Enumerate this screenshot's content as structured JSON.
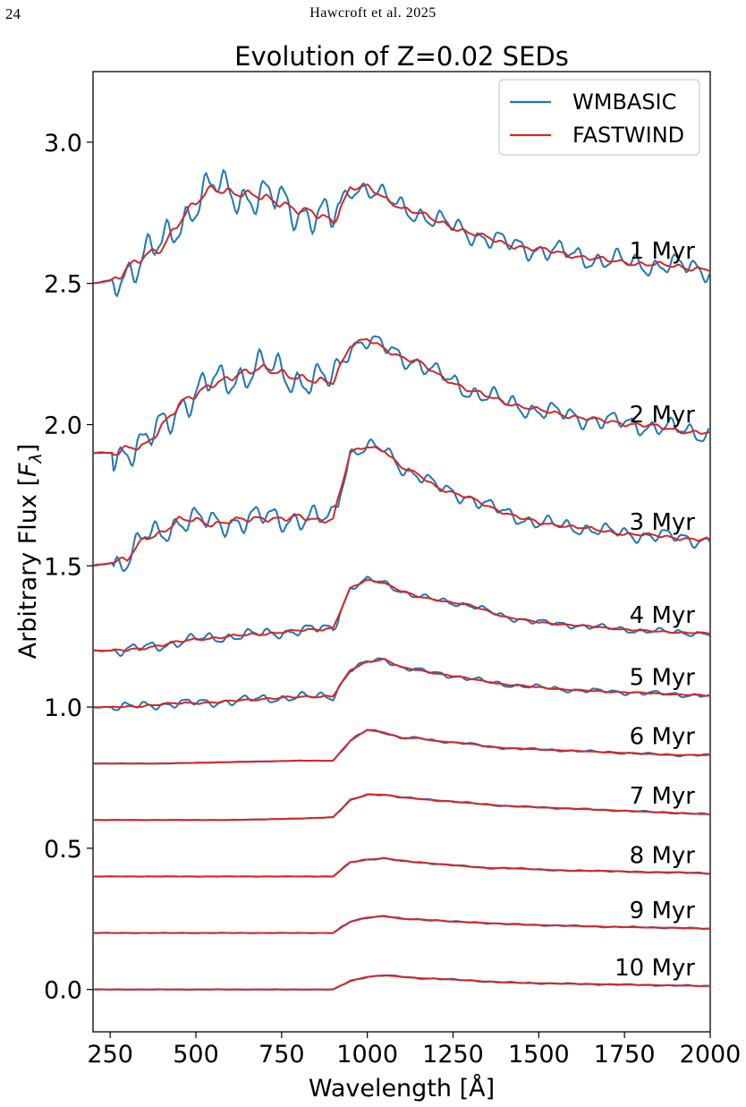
{
  "page": {
    "number": "24",
    "running_head": "Hawcroft et al. 2025"
  },
  "colors": {
    "wmbasic": "#1f77b4",
    "fastwind": "#d62728"
  },
  "chart_data": {
    "type": "line",
    "title": "Evolution of Z=0.02 SEDs",
    "xlabel": "Wavelength [Å]",
    "ylabel": "Arbitrary Flux [Fλ]",
    "xlim": [
      200,
      2000
    ],
    "ylim": [
      -0.15,
      3.25
    ],
    "xticks": [
      250,
      500,
      750,
      1000,
      1250,
      1500,
      1750,
      2000
    ],
    "yticks": [
      0.0,
      0.5,
      1.0,
      1.5,
      2.0,
      2.5,
      3.0
    ],
    "grid": false,
    "legend_position": "top-right",
    "legend": [
      "WMBASIC",
      "FASTWIND"
    ],
    "ages": [
      {
        "label": "1 Myr",
        "base": 2.5,
        "points": [
          [
            200,
            2.5
          ],
          [
            250,
            2.51
          ],
          [
            300,
            2.55
          ],
          [
            350,
            2.59
          ],
          [
            400,
            2.63
          ],
          [
            450,
            2.72
          ],
          [
            500,
            2.78
          ],
          [
            550,
            2.84
          ],
          [
            600,
            2.83
          ],
          [
            650,
            2.81
          ],
          [
            700,
            2.8
          ],
          [
            750,
            2.79
          ],
          [
            800,
            2.76
          ],
          [
            850,
            2.74
          ],
          [
            900,
            2.72
          ],
          [
            950,
            2.84
          ],
          [
            1000,
            2.84
          ],
          [
            1050,
            2.8
          ],
          [
            1100,
            2.77
          ],
          [
            1150,
            2.75
          ],
          [
            1200,
            2.72
          ],
          [
            1250,
            2.7
          ],
          [
            1300,
            2.68
          ],
          [
            1350,
            2.66
          ],
          [
            1400,
            2.64
          ],
          [
            1500,
            2.62
          ],
          [
            1600,
            2.6
          ],
          [
            1700,
            2.58
          ],
          [
            1800,
            2.57
          ],
          [
            1900,
            2.56
          ],
          [
            2000,
            2.55
          ]
        ]
      },
      {
        "label": "2 Myr",
        "base": 1.9,
        "points": [
          [
            200,
            1.9
          ],
          [
            250,
            1.9
          ],
          [
            300,
            1.91
          ],
          [
            350,
            1.92
          ],
          [
            400,
            2.0
          ],
          [
            450,
            2.07
          ],
          [
            500,
            2.1
          ],
          [
            550,
            2.15
          ],
          [
            600,
            2.17
          ],
          [
            650,
            2.18
          ],
          [
            700,
            2.2
          ],
          [
            750,
            2.19
          ],
          [
            800,
            2.16
          ],
          [
            850,
            2.15
          ],
          [
            900,
            2.16
          ],
          [
            950,
            2.28
          ],
          [
            1000,
            2.3
          ],
          [
            1050,
            2.27
          ],
          [
            1100,
            2.24
          ],
          [
            1150,
            2.22
          ],
          [
            1200,
            2.18
          ],
          [
            1250,
            2.15
          ],
          [
            1300,
            2.12
          ],
          [
            1350,
            2.1
          ],
          [
            1400,
            2.08
          ],
          [
            1500,
            2.05
          ],
          [
            1600,
            2.03
          ],
          [
            1700,
            2.01
          ],
          [
            1800,
            2.0
          ],
          [
            1900,
            1.98
          ],
          [
            2000,
            1.97
          ]
        ]
      },
      {
        "label": "3 Myr",
        "base": 1.5,
        "points": [
          [
            200,
            1.5
          ],
          [
            250,
            1.51
          ],
          [
            300,
            1.52
          ],
          [
            350,
            1.6
          ],
          [
            400,
            1.62
          ],
          [
            450,
            1.66
          ],
          [
            500,
            1.66
          ],
          [
            550,
            1.65
          ],
          [
            600,
            1.66
          ],
          [
            650,
            1.66
          ],
          [
            700,
            1.67
          ],
          [
            750,
            1.67
          ],
          [
            800,
            1.67
          ],
          [
            850,
            1.66
          ],
          [
            900,
            1.67
          ],
          [
            950,
            1.9
          ],
          [
            1000,
            1.92
          ],
          [
            1050,
            1.91
          ],
          [
            1100,
            1.85
          ],
          [
            1150,
            1.82
          ],
          [
            1200,
            1.78
          ],
          [
            1250,
            1.76
          ],
          [
            1300,
            1.74
          ],
          [
            1350,
            1.71
          ],
          [
            1400,
            1.69
          ],
          [
            1500,
            1.65
          ],
          [
            1600,
            1.64
          ],
          [
            1700,
            1.62
          ],
          [
            1800,
            1.61
          ],
          [
            1900,
            1.6
          ],
          [
            2000,
            1.59
          ]
        ]
      },
      {
        "label": "4 Myr",
        "base": 1.2,
        "points": [
          [
            200,
            1.2
          ],
          [
            300,
            1.2
          ],
          [
            400,
            1.22
          ],
          [
            500,
            1.24
          ],
          [
            600,
            1.25
          ],
          [
            700,
            1.26
          ],
          [
            800,
            1.27
          ],
          [
            900,
            1.28
          ],
          [
            950,
            1.42
          ],
          [
            1000,
            1.45
          ],
          [
            1050,
            1.44
          ],
          [
            1100,
            1.41
          ],
          [
            1150,
            1.39
          ],
          [
            1200,
            1.38
          ],
          [
            1250,
            1.37
          ],
          [
            1300,
            1.36
          ],
          [
            1350,
            1.34
          ],
          [
            1400,
            1.32
          ],
          [
            1500,
            1.3
          ],
          [
            1600,
            1.29
          ],
          [
            1700,
            1.28
          ],
          [
            1800,
            1.27
          ],
          [
            1900,
            1.265
          ],
          [
            2000,
            1.26
          ]
        ]
      },
      {
        "label": "5 Myr",
        "base": 1.0,
        "points": [
          [
            200,
            1.0
          ],
          [
            300,
            1.0
          ],
          [
            400,
            1.01
          ],
          [
            500,
            1.015
          ],
          [
            600,
            1.02
          ],
          [
            700,
            1.03
          ],
          [
            800,
            1.035
          ],
          [
            900,
            1.04
          ],
          [
            950,
            1.13
          ],
          [
            1000,
            1.16
          ],
          [
            1050,
            1.17
          ],
          [
            1100,
            1.14
          ],
          [
            1150,
            1.13
          ],
          [
            1200,
            1.12
          ],
          [
            1250,
            1.11
          ],
          [
            1300,
            1.1
          ],
          [
            1350,
            1.09
          ],
          [
            1400,
            1.08
          ],
          [
            1500,
            1.07
          ],
          [
            1600,
            1.06
          ],
          [
            1700,
            1.055
          ],
          [
            1800,
            1.05
          ],
          [
            1900,
            1.045
          ],
          [
            2000,
            1.04
          ]
        ]
      },
      {
        "label": "6 Myr",
        "base": 0.8,
        "points": [
          [
            200,
            0.8
          ],
          [
            400,
            0.8
          ],
          [
            600,
            0.805
          ],
          [
            800,
            0.81
          ],
          [
            900,
            0.81
          ],
          [
            950,
            0.88
          ],
          [
            1000,
            0.92
          ],
          [
            1050,
            0.91
          ],
          [
            1100,
            0.89
          ],
          [
            1150,
            0.89
          ],
          [
            1200,
            0.88
          ],
          [
            1250,
            0.875
          ],
          [
            1300,
            0.87
          ],
          [
            1350,
            0.86
          ],
          [
            1400,
            0.855
          ],
          [
            1500,
            0.85
          ],
          [
            1600,
            0.845
          ],
          [
            1700,
            0.84
          ],
          [
            1800,
            0.835
          ],
          [
            1900,
            0.83
          ],
          [
            2000,
            0.83
          ]
        ]
      },
      {
        "label": "7 Myr",
        "base": 0.6,
        "points": [
          [
            200,
            0.6
          ],
          [
            400,
            0.6
          ],
          [
            600,
            0.6
          ],
          [
            800,
            0.605
          ],
          [
            900,
            0.61
          ],
          [
            950,
            0.67
          ],
          [
            1000,
            0.69
          ],
          [
            1050,
            0.69
          ],
          [
            1100,
            0.68
          ],
          [
            1150,
            0.675
          ],
          [
            1200,
            0.67
          ],
          [
            1250,
            0.665
          ],
          [
            1300,
            0.66
          ],
          [
            1350,
            0.655
          ],
          [
            1400,
            0.65
          ],
          [
            1500,
            0.645
          ],
          [
            1600,
            0.64
          ],
          [
            1700,
            0.635
          ],
          [
            1800,
            0.63
          ],
          [
            1900,
            0.625
          ],
          [
            2000,
            0.62
          ]
        ]
      },
      {
        "label": "8 Myr",
        "base": 0.4,
        "points": [
          [
            200,
            0.4
          ],
          [
            400,
            0.4
          ],
          [
            600,
            0.4
          ],
          [
            800,
            0.4
          ],
          [
            900,
            0.4
          ],
          [
            950,
            0.45
          ],
          [
            1000,
            0.46
          ],
          [
            1050,
            0.465
          ],
          [
            1100,
            0.455
          ],
          [
            1150,
            0.45
          ],
          [
            1200,
            0.445
          ],
          [
            1250,
            0.44
          ],
          [
            1300,
            0.435
          ],
          [
            1350,
            0.43
          ],
          [
            1400,
            0.43
          ],
          [
            1500,
            0.425
          ],
          [
            1600,
            0.42
          ],
          [
            1700,
            0.42
          ],
          [
            1800,
            0.415
          ],
          [
            1900,
            0.415
          ],
          [
            2000,
            0.41
          ]
        ]
      },
      {
        "label": "9 Myr",
        "base": 0.2,
        "points": [
          [
            200,
            0.2
          ],
          [
            400,
            0.2
          ],
          [
            600,
            0.2
          ],
          [
            800,
            0.2
          ],
          [
            900,
            0.2
          ],
          [
            950,
            0.24
          ],
          [
            1000,
            0.255
          ],
          [
            1050,
            0.26
          ],
          [
            1100,
            0.25
          ],
          [
            1150,
            0.248
          ],
          [
            1200,
            0.245
          ],
          [
            1250,
            0.24
          ],
          [
            1300,
            0.238
          ],
          [
            1350,
            0.235
          ],
          [
            1400,
            0.232
          ],
          [
            1500,
            0.228
          ],
          [
            1600,
            0.225
          ],
          [
            1700,
            0.222
          ],
          [
            1800,
            0.22
          ],
          [
            1900,
            0.218
          ],
          [
            2000,
            0.215
          ]
        ]
      },
      {
        "label": "10 Myr",
        "base": 0.0,
        "points": [
          [
            200,
            0.0
          ],
          [
            400,
            0.0
          ],
          [
            600,
            0.0
          ],
          [
            800,
            0.0
          ],
          [
            900,
            0.0
          ],
          [
            950,
            0.03
          ],
          [
            1000,
            0.045
          ],
          [
            1050,
            0.05
          ],
          [
            1100,
            0.045
          ],
          [
            1150,
            0.04
          ],
          [
            1200,
            0.038
          ],
          [
            1250,
            0.035
          ],
          [
            1300,
            0.032
          ],
          [
            1350,
            0.028
          ],
          [
            1400,
            0.025
          ],
          [
            1500,
            0.022
          ],
          [
            1600,
            0.02
          ],
          [
            1700,
            0.018
          ],
          [
            1800,
            0.016
          ],
          [
            1900,
            0.014
          ],
          [
            2000,
            0.012
          ]
        ]
      }
    ]
  }
}
